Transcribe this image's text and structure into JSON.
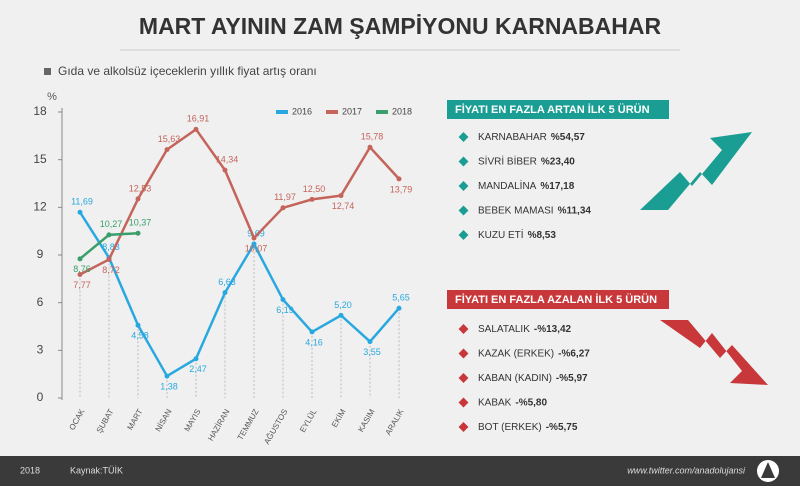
{
  "chart_data": {
    "type": "line",
    "title": "MART AYININ ZAM ŞAMPİYONU KARNABAHAR",
    "subtitle": "Gıda ve alkolsüz içeceklerin yıllık fiyat artış oranı",
    "y_label": "%",
    "categories": [
      "OCAK",
      "ŞUBAT",
      "MART",
      "NİSAN",
      "MAYIS",
      "HAZİRAN",
      "TEMMUZ",
      "AĞUSTOS",
      "EYLÜL",
      "EKİM",
      "KASIM",
      "ARALIK"
    ],
    "series": [
      {
        "name": "2016",
        "color": "#29a8df",
        "values": [
          11.69,
          8.83,
          4.58,
          1.38,
          2.47,
          6.63,
          9.69,
          6.19,
          4.16,
          5.2,
          3.55,
          5.65
        ],
        "value_labels": [
          "11,69",
          "8,83",
          "4,58",
          "1,38",
          "2,47",
          "6,63",
          "9,69",
          "6,19",
          "4,16",
          "5,20",
          "3,55",
          "5,65"
        ]
      },
      {
        "name": "2017",
        "color": "#c4645a",
        "values": [
          7.77,
          8.72,
          12.53,
          15.63,
          16.91,
          14.34,
          10.07,
          11.97,
          12.5,
          12.74,
          15.78,
          13.79
        ],
        "value_labels": [
          "7,77",
          "8,72",
          "12,53",
          "15,63",
          "16,91",
          "14,34",
          "10,07",
          "11,97",
          "12,50",
          "12,74",
          "15,78",
          "13,79"
        ]
      },
      {
        "name": "2018",
        "color": "#3a9e6a",
        "values": [
          8.76,
          10.27,
          10.37,
          null,
          null,
          null,
          null,
          null,
          null,
          null,
          null,
          null
        ],
        "value_labels": [
          "8,76",
          "10,27",
          "10,37",
          null,
          null,
          null,
          null,
          null,
          null,
          null,
          null,
          null
        ]
      }
    ],
    "ylim": [
      0,
      18
    ],
    "yticks": [
      0,
      3,
      6,
      9,
      12,
      15,
      18
    ],
    "grid": false
  },
  "increase_panel": {
    "title": "FİYATI EN FAZLA ARTAN İLK 5 ÜRÜN",
    "items": [
      {
        "name": "KARNABAHAR",
        "value": "%54,57"
      },
      {
        "name": "SİVRİ BİBER",
        "value": "%23,40"
      },
      {
        "name": "MANDALİNA",
        "value": "%17,18"
      },
      {
        "name": "BEBEK MAMASI",
        "value": "%11,34"
      },
      {
        "name": "KUZU ETİ",
        "value": "%8,53"
      }
    ]
  },
  "decrease_panel": {
    "title": "FİYATI EN FAZLA AZALAN İLK 5 ÜRÜN",
    "items": [
      {
        "name": "SALATALIK",
        "value": "-%13,42"
      },
      {
        "name": "KAZAK (ERKEK)",
        "value": "-%6,27"
      },
      {
        "name": "KABAN (KADIN)",
        "value": "-%5,97"
      },
      {
        "name": "KABAK",
        "value": "-%5,80"
      },
      {
        "name": "BOT (ERKEK)",
        "value": "-%5,75"
      }
    ]
  },
  "footer": {
    "year": "2018",
    "source": "Kaynak:TÜİK",
    "url": "www.twitter.com/anadolujansi"
  }
}
